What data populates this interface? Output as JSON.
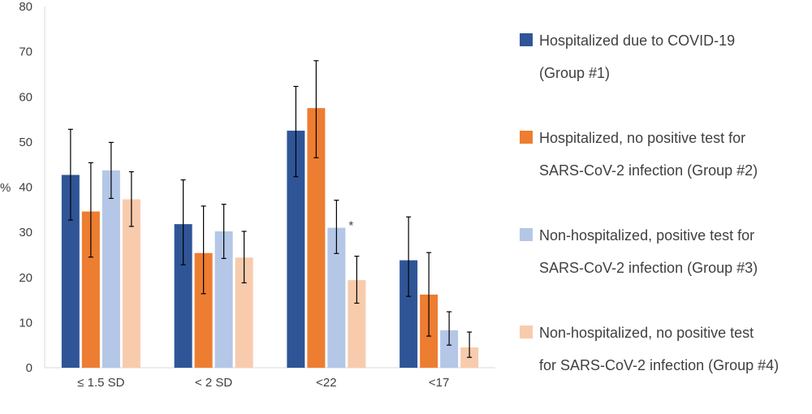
{
  "chart_data": {
    "type": "bar",
    "title": "",
    "xlabel": "",
    "ylabel": "%",
    "ylim": [
      0,
      80
    ],
    "yticks": [
      "0",
      "10",
      "20",
      "30",
      "40",
      "50",
      "60",
      "70",
      "80"
    ],
    "categories": [
      "≤ 1.5 SD",
      "< 2 SD",
      "<22",
      "<17"
    ],
    "series": [
      {
        "name": "Hospitalized  due to COVID-19 (Group #1)",
        "color": "#2f5597",
        "values": [
          42.7,
          31.8,
          52.5,
          23.8
        ],
        "err_low": [
          32.7,
          22.8,
          42.3,
          15.8
        ],
        "err_high": [
          52.8,
          41.6,
          62.3,
          33.4
        ]
      },
      {
        "name": "Hospitalized,  no positive test for SARS-CoV-2 infection (Group #2)",
        "color": "#ed7d31",
        "values": [
          34.6,
          25.4,
          57.5,
          16.2
        ],
        "err_low": [
          24.5,
          16.4,
          46.5,
          7.0
        ],
        "err_high": [
          45.4,
          35.8,
          68.0,
          25.5
        ]
      },
      {
        "name": "Non-hospitalized,  positive test for SARS-CoV-2 infection (Group #3)",
        "color": "#b4c7e7",
        "values": [
          43.7,
          30.2,
          31.0,
          8.3
        ],
        "err_low": [
          37.5,
          24.2,
          25.3,
          5.0
        ],
        "err_high": [
          49.9,
          36.2,
          37.1,
          12.4
        ]
      },
      {
        "name": "Non-hospitalized,  no positive test for SARS-CoV-2 infection (Group #4)",
        "color": "#f8cbad",
        "values": [
          37.3,
          24.4,
          19.4,
          4.5
        ],
        "err_low": [
          31.3,
          18.8,
          14.3,
          2.3
        ],
        "err_high": [
          43.4,
          30.2,
          24.7,
          7.9
        ]
      }
    ],
    "annotations": [
      {
        "text": "*",
        "category": "<22",
        "series_index": 2
      }
    ]
  },
  "legend": [
    {
      "line1": "Hospitalized  due to COVID-19",
      "line2": "(Group #1)"
    },
    {
      "line1": "Hospitalized,  no positive test for",
      "line2": "SARS-CoV-2 infection (Group #2)"
    },
    {
      "line1": "Non-hospitalized,  positive test for",
      "line2": "SARS-CoV-2 infection (Group #3)"
    },
    {
      "line1": "Non-hospitalized,  no positive test",
      "line2": "for SARS-CoV-2 infection (Group #4)"
    }
  ]
}
